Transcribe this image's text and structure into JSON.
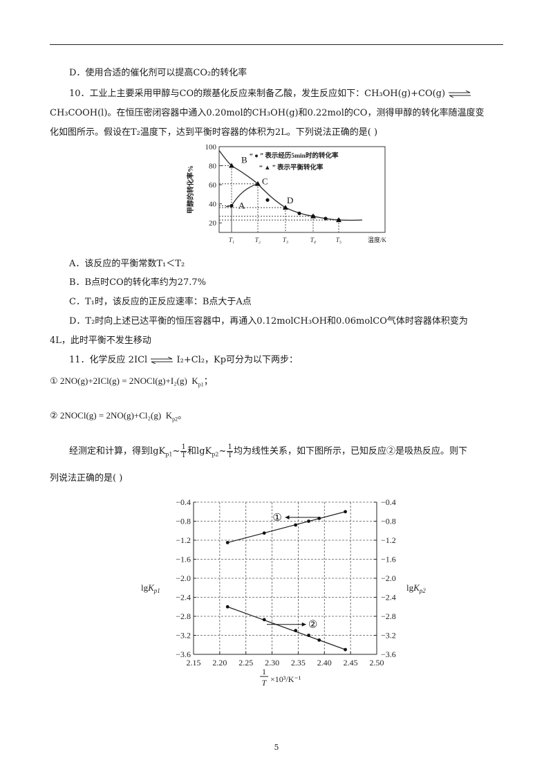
{
  "q9": {
    "optD": "D．使用合适的催化剂可以提高CO₂的转化率"
  },
  "q10": {
    "line1": "10．工业上主要采用甲醇与CO的羰基化反应来制备乙酸，发生反应如下：CH₃OH(g)+CO(g)",
    "line2": "CH₃COOH(l)。在恒压密闭容器中通入0.20mol的CH₃OH(g)和0.22mol的CO，测得甲醇的转化率随温度变",
    "line3": "化如图所示。假设在T₂温度下，达到平衡时容器的体积为2L。下列说法正确的是(      )",
    "optA": "A．该反应的平衡常数T₁＜T₂",
    "optB": "B．B点时CO的转化率约为27.7%",
    "optC": "C．T₁时，该反应的正反应速率：B点大于A点",
    "optD1": "D．T₂时向上述已达平衡的恒压容器中，再通入0.12molCH₃OH和0.06molCO气体时容器体积变为",
    "optD2": "4L，此时平衡不发生移动"
  },
  "chart1": {
    "ylabel": "甲醇的转化率%",
    "legend_dot": "“ ● ” 表示经历5min时的转化率",
    "legend_tri": "“ ▲ ” 表示平衡转化率",
    "xlabel": "温度/K",
    "yticks": [
      "100",
      "80",
      "60",
      "40",
      "20"
    ],
    "xticks": [
      "T₁",
      "T₂",
      "T₃",
      "T₄",
      "T₅"
    ],
    "point_labels": [
      "A",
      "B",
      "C",
      "D"
    ]
  },
  "chart_data": [
    {
      "type": "line",
      "ylabel": "甲醇的转化率%",
      "xlabel": "温度/K",
      "categories": [
        "T₁",
        "T₂",
        "T₃",
        "T₄",
        "T₅"
      ],
      "ylim": [
        0,
        100
      ],
      "series": [
        {
          "name": "“●”表示经历5min时的转化率",
          "values": [
            38,
            61,
            36,
            27,
            23
          ]
        },
        {
          "name": "“▲”表示平衡转化率",
          "values": [
            80,
            61,
            36,
            27,
            23
          ]
        }
      ],
      "annotations": {
        "A": [
          1,
          38
        ],
        "B": [
          1,
          80
        ],
        "C": [
          2,
          61
        ],
        "D": [
          3,
          36
        ]
      }
    },
    {
      "type": "scatter",
      "xlabel": "1/T×10³/K⁻¹",
      "ylabel": "lgKp1",
      "ylabel_right": "lgKp2",
      "xlim": [
        2.15,
        2.5
      ],
      "ylim": [
        -3.6,
        -0.4
      ],
      "xticks": [
        "2.15",
        "2.20",
        "2.25",
        "2.30",
        "2.35",
        "2.40",
        "2.45",
        "2.50"
      ],
      "yticks": [
        "−0.4",
        "−0.8",
        "−1.2",
        "−1.6",
        "−2.0",
        "−2.4",
        "−2.8",
        "−3.2",
        "−3.6"
      ],
      "series": [
        {
          "name": "①",
          "x": [
            2.215,
            2.285,
            2.345,
            2.37,
            2.39,
            2.44
          ],
          "y": [
            -1.25,
            -1.05,
            -0.88,
            -0.8,
            -0.74,
            -0.6
          ]
        },
        {
          "name": "②",
          "x": [
            2.215,
            2.285,
            2.345,
            2.37,
            2.39,
            2.44
          ],
          "y": [
            -2.6,
            -2.87,
            -3.1,
            -3.2,
            -3.3,
            -3.5
          ]
        }
      ]
    }
  ],
  "q11": {
    "line1_a": "11．化学反应 2ICl",
    "line1_b": " I₂+Cl₂，Kp可分为以下两步：",
    "step1": "2NO(g)+2ICl(g) = 2NOCl(g)+I₂(g)",
    "step1_k": "K",
    "step1_sub": "p1",
    "step1_end": "；",
    "step2": "2NOCl(g) = 2NO(g)+Cl₂(g)",
    "step2_k": "K",
    "step2_sub": "p2",
    "step2_end": "。",
    "circ1": "①",
    "circ2": "②",
    "text_a": "经测定和计算，得到",
    "lgKp1": "lgK",
    "sub1": "p1",
    "tilde": "~",
    "frac_num": "1",
    "frac_den": "T",
    "and": "和",
    "lgKp2": "lgK",
    "sub2": "p2",
    "text_b": "均为线性关系，如下图所示，已知反应②是吸热反应。则下",
    "line_last": "列说法正确的是(      )"
  },
  "chart2": {
    "ylabel_left": "lgK",
    "ylabel_left_sub": "p1",
    "ylabel_right": "lgK",
    "ylabel_right_sub": "p2",
    "xlabel_num": "1",
    "xlabel_den": "T",
    "xlabel_rest": "×10³/K⁻¹",
    "label1": "①",
    "label2": "②",
    "xticks": [
      "2.15",
      "2.20",
      "2.25",
      "2.30",
      "2.35",
      "2.40",
      "2.45",
      "2.50"
    ],
    "yticks": [
      "−0.4",
      "−0.8",
      "−1.2",
      "−1.6",
      "−2.0",
      "−2.4",
      "−2.8",
      "−3.2",
      "−3.6"
    ]
  },
  "page_number": "5"
}
